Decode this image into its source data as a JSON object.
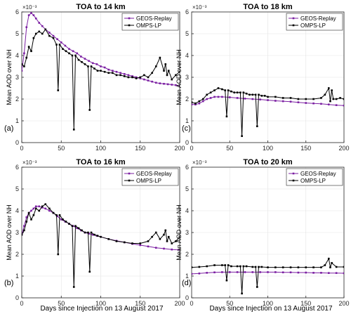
{
  "figure": {
    "shared_xlabel": "Days since Injection on 13 August 2017"
  },
  "chart_data": [
    {
      "type": "line",
      "panel_label": "(a)",
      "title": "TOA to 14 km",
      "ylabel": "Mean AOD over NH",
      "y_exponent": "×10⁻³",
      "xlim": [
        0,
        200
      ],
      "ylim": [
        0,
        6
      ],
      "xticks": [
        0,
        50,
        100,
        150,
        200
      ],
      "yticks": [
        0,
        1,
        2,
        3,
        4,
        5,
        6
      ],
      "grid": true,
      "legend": "top-right",
      "series": [
        {
          "name": "GEOS-Replay",
          "color": "#7b1fa2",
          "x": [
            0,
            3,
            6,
            9,
            12,
            15,
            18,
            22,
            26,
            30,
            35,
            40,
            45,
            50,
            55,
            60,
            65,
            70,
            75,
            80,
            85,
            90,
            95,
            100,
            105,
            110,
            115,
            120,
            125,
            130,
            135,
            140,
            145,
            150,
            155,
            160,
            165,
            170,
            175,
            180,
            185,
            190,
            195,
            200
          ],
          "y": [
            3.3,
            4.1,
            5.3,
            5.85,
            5.95,
            5.85,
            5.7,
            5.5,
            5.35,
            5.2,
            5.05,
            4.9,
            4.75,
            4.6,
            4.45,
            4.3,
            4.2,
            4.1,
            3.95,
            3.85,
            3.75,
            3.65,
            3.6,
            3.5,
            3.45,
            3.35,
            3.3,
            3.25,
            3.2,
            3.15,
            3.1,
            3.05,
            3.0,
            2.95,
            2.9,
            2.85,
            2.8,
            2.75,
            2.72,
            2.7,
            2.68,
            2.66,
            2.64,
            2.62
          ]
        },
        {
          "name": "OMPS-LP",
          "color": "#000000",
          "x": [
            0,
            3,
            6,
            9,
            12,
            15,
            18,
            22,
            26,
            30,
            35,
            40,
            44,
            46,
            48,
            52,
            56,
            60,
            64,
            66,
            68,
            72,
            76,
            80,
            84,
            86,
            88,
            92,
            96,
            100,
            105,
            110,
            115,
            120,
            125,
            130,
            135,
            140,
            145,
            150,
            155,
            160,
            165,
            170,
            175,
            180,
            182,
            184,
            186,
            190,
            195,
            200
          ],
          "y": [
            3.6,
            3.5,
            3.9,
            4.4,
            4.2,
            4.8,
            5.0,
            5.1,
            5.0,
            5.2,
            4.9,
            4.8,
            4.5,
            2.4,
            4.5,
            4.3,
            4.2,
            4.1,
            4.0,
            0.6,
            4.0,
            3.8,
            3.7,
            3.6,
            3.5,
            1.5,
            3.5,
            3.4,
            3.3,
            3.3,
            3.25,
            3.2,
            3.2,
            3.1,
            3.1,
            3.05,
            3.0,
            3.0,
            2.95,
            3.0,
            3.1,
            3.0,
            3.2,
            3.5,
            3.9,
            3.3,
            3.6,
            3.1,
            3.3,
            2.9,
            3.1,
            3.25
          ]
        }
      ]
    },
    {
      "type": "line",
      "panel_label": "(c)",
      "title": "TOA to 18 km",
      "ylabel": "Mean AOD over NH",
      "y_exponent": "×10⁻³",
      "xlim": [
        0,
        200
      ],
      "ylim": [
        0,
        6
      ],
      "xticks": [
        0,
        50,
        100,
        150,
        200
      ],
      "yticks": [
        0,
        1,
        2,
        3,
        4,
        5,
        6
      ],
      "grid": true,
      "legend": "top-right",
      "series": [
        {
          "name": "GEOS-Replay",
          "color": "#7b1fa2",
          "x": [
            0,
            5,
            10,
            15,
            20,
            25,
            30,
            35,
            40,
            50,
            60,
            70,
            80,
            90,
            100,
            110,
            120,
            130,
            140,
            150,
            160,
            170,
            180,
            190,
            200
          ],
          "y": [
            1.75,
            1.75,
            1.8,
            1.9,
            2.0,
            2.05,
            2.1,
            2.1,
            2.1,
            2.08,
            2.05,
            2.02,
            2.0,
            1.98,
            1.95,
            1.92,
            1.9,
            1.88,
            1.85,
            1.82,
            1.8,
            1.78,
            1.75,
            1.72,
            1.7
          ]
        },
        {
          "name": "OMPS-LP",
          "color": "#000000",
          "x": [
            0,
            5,
            10,
            15,
            20,
            25,
            30,
            35,
            40,
            44,
            46,
            48,
            52,
            56,
            60,
            64,
            66,
            68,
            72,
            76,
            80,
            84,
            86,
            88,
            92,
            96,
            100,
            110,
            120,
            130,
            140,
            150,
            160,
            170,
            175,
            180,
            182,
            184,
            186,
            190,
            195,
            200
          ],
          "y": [
            1.85,
            1.8,
            1.9,
            2.0,
            2.2,
            2.3,
            2.4,
            2.5,
            2.45,
            2.4,
            1.2,
            2.4,
            2.35,
            2.3,
            2.3,
            2.3,
            0.3,
            2.3,
            2.25,
            2.2,
            2.2,
            2.2,
            0.75,
            2.2,
            2.15,
            2.15,
            2.1,
            2.1,
            2.05,
            2.05,
            2.0,
            2.0,
            2.0,
            2.05,
            2.2,
            2.5,
            1.9,
            2.4,
            2.0,
            2.0,
            2.05,
            2.0
          ]
        }
      ]
    },
    {
      "type": "line",
      "panel_label": "(b)",
      "title": "TOA to 16 km",
      "ylabel": "Mean AOD over NH",
      "y_exponent": "×10⁻³",
      "xlim": [
        0,
        200
      ],
      "ylim": [
        0,
        6
      ],
      "xticks": [
        0,
        50,
        100,
        150,
        200
      ],
      "yticks": [
        0,
        1,
        2,
        3,
        4,
        5,
        6
      ],
      "grid": true,
      "legend": "top-right",
      "series": [
        {
          "name": "GEOS-Replay",
          "color": "#7b1fa2",
          "x": [
            0,
            3,
            6,
            9,
            12,
            15,
            18,
            22,
            26,
            30,
            35,
            40,
            45,
            50,
            55,
            60,
            65,
            70,
            75,
            80,
            85,
            90,
            95,
            100,
            110,
            120,
            130,
            140,
            150,
            160,
            170,
            180,
            190,
            200
          ],
          "y": [
            2.9,
            3.3,
            3.7,
            3.9,
            4.0,
            4.1,
            4.2,
            4.2,
            4.15,
            4.1,
            4.0,
            3.9,
            3.75,
            3.6,
            3.5,
            3.4,
            3.3,
            3.2,
            3.1,
            3.0,
            2.95,
            2.9,
            2.85,
            2.8,
            2.7,
            2.62,
            2.55,
            2.48,
            2.42,
            2.36,
            2.3,
            2.26,
            2.22,
            2.2
          ]
        },
        {
          "name": "OMPS-LP",
          "color": "#000000",
          "x": [
            0,
            3,
            6,
            9,
            12,
            15,
            18,
            22,
            26,
            30,
            35,
            40,
            44,
            46,
            48,
            52,
            56,
            60,
            64,
            66,
            68,
            72,
            76,
            80,
            84,
            86,
            88,
            92,
            96,
            100,
            110,
            120,
            130,
            140,
            150,
            160,
            165,
            170,
            175,
            180,
            182,
            184,
            186,
            190,
            195,
            200
          ],
          "y": [
            2.9,
            3.1,
            3.5,
            3.9,
            3.6,
            3.8,
            4.1,
            4.0,
            4.2,
            4.3,
            4.1,
            3.9,
            3.8,
            2.0,
            3.8,
            3.6,
            3.5,
            3.4,
            3.3,
            0.5,
            3.3,
            3.2,
            3.1,
            3.0,
            3.0,
            1.2,
            3.0,
            2.9,
            2.85,
            2.8,
            2.7,
            2.6,
            2.55,
            2.5,
            2.5,
            2.6,
            2.8,
            3.0,
            2.7,
            2.9,
            3.1,
            2.6,
            2.8,
            2.5,
            2.6,
            2.8
          ]
        }
      ]
    },
    {
      "type": "line",
      "panel_label": "(d)",
      "title": "TOA to 20 km",
      "ylabel": "Mean AOD over NH",
      "y_exponent": "×10⁻³",
      "xlim": [
        0,
        200
      ],
      "ylim": [
        0,
        6
      ],
      "xticks": [
        0,
        50,
        100,
        150,
        200
      ],
      "yticks": [
        0,
        1,
        2,
        3,
        4,
        5,
        6
      ],
      "grid": true,
      "legend": "top-right",
      "series": [
        {
          "name": "GEOS-Replay",
          "color": "#7b1fa2",
          "x": [
            0,
            10,
            20,
            30,
            40,
            50,
            60,
            70,
            80,
            90,
            100,
            110,
            120,
            130,
            140,
            150,
            160,
            170,
            180,
            190,
            200
          ],
          "y": [
            1.1,
            1.12,
            1.15,
            1.17,
            1.18,
            1.18,
            1.18,
            1.18,
            1.18,
            1.18,
            1.18,
            1.18,
            1.17,
            1.17,
            1.16,
            1.16,
            1.15,
            1.15,
            1.14,
            1.14,
            1.13
          ]
        },
        {
          "name": "OMPS-LP",
          "color": "#000000",
          "x": [
            0,
            10,
            20,
            30,
            40,
            44,
            46,
            48,
            52,
            60,
            64,
            66,
            68,
            72,
            80,
            84,
            86,
            88,
            92,
            100,
            110,
            120,
            130,
            140,
            150,
            160,
            170,
            175,
            180,
            182,
            184,
            190,
            200
          ],
          "y": [
            1.4,
            1.42,
            1.45,
            1.5,
            1.5,
            1.5,
            0.8,
            1.5,
            1.45,
            1.45,
            1.45,
            0.2,
            1.45,
            1.45,
            1.42,
            1.42,
            0.5,
            1.42,
            1.42,
            1.4,
            1.4,
            1.4,
            1.4,
            1.4,
            1.4,
            1.4,
            1.4,
            1.5,
            1.8,
            1.4,
            1.6,
            1.42,
            1.42
          ]
        }
      ]
    }
  ]
}
